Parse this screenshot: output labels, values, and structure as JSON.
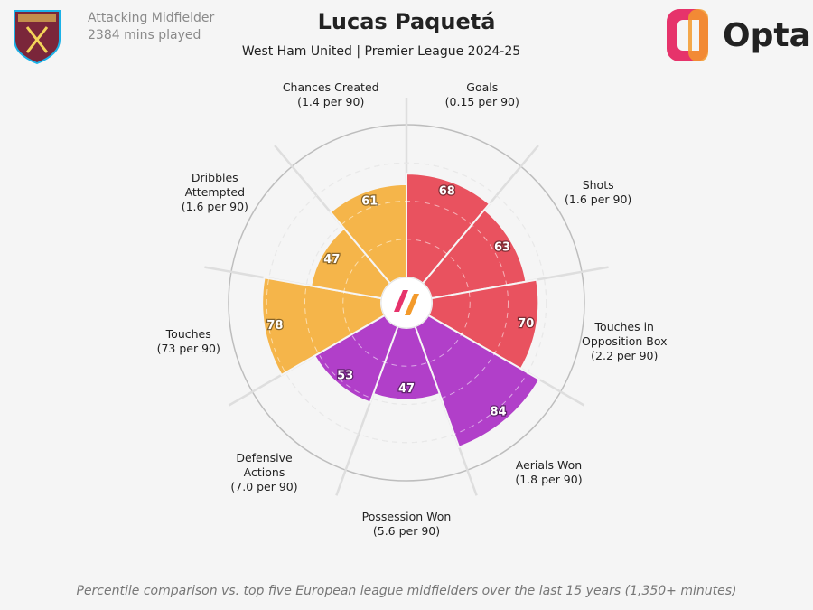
{
  "chart_data": {
    "type": "pizza",
    "title": "Lucas Paquetá",
    "subtitle": "West Ham United | Premier League 2024-25",
    "position": "Attacking Midfielder",
    "minutes": "2384 mins played",
    "brand": "Opta",
    "footnote": "Percentile comparison vs. top five European league midfielders over the last 15 years (1,350+ minutes)",
    "categories": [
      "Goals",
      "Shots",
      "Touches in Opposition Box",
      "Aerials Won",
      "Possession Won",
      "Defensive Actions",
      "Touches",
      "Dribbles Attempted",
      "Chances Created"
    ],
    "per90": [
      "(0.15 per 90)",
      "(1.6 per 90)",
      "(2.2 per 90)",
      "(1.8 per 90)",
      "(5.6 per 90)",
      "(7.0 per 90)",
      "(73 per 90)",
      "(1.6 per 90)",
      "(1.4 per 90)"
    ],
    "values": [
      68,
      63,
      70,
      84,
      47,
      53,
      78,
      47,
      61
    ],
    "colors": [
      "#e9525f",
      "#e9525f",
      "#e9525f",
      "#b13fc9",
      "#b13fc9",
      "#b13fc9",
      "#f5b54a",
      "#f5b54a",
      "#f5b54a"
    ],
    "rlim": [
      0,
      100
    ],
    "rticks": [
      25,
      50,
      75
    ]
  }
}
